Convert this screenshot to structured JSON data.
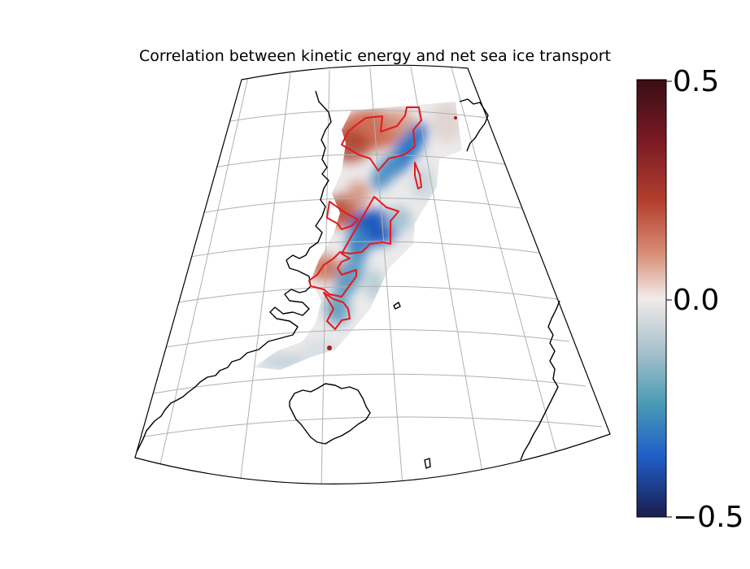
{
  "title": "Correlation between kinetic energy and net sea ice transport",
  "colorbar": {
    "ticks": [
      "0.5",
      "0.0",
      "−0.5"
    ],
    "colors": [
      "#3a0d14",
      "#7a1a24",
      "#b4402e",
      "#d98f78",
      "#f2ebea",
      "#a8c2cc",
      "#4a9bb5",
      "#1f5fc8",
      "#1a1d4f"
    ]
  },
  "map": {
    "projection": "conic",
    "region": "Fram Strait / Greenland Sea",
    "grid": true,
    "colors": {
      "coastline": "#000000",
      "significance_contour": "#e31a1c",
      "graticule": "#b0b0b0"
    },
    "lands": [
      "Greenland",
      "Iceland",
      "Svalbard",
      "Jan Mayen",
      "Scandinavia"
    ]
  }
}
